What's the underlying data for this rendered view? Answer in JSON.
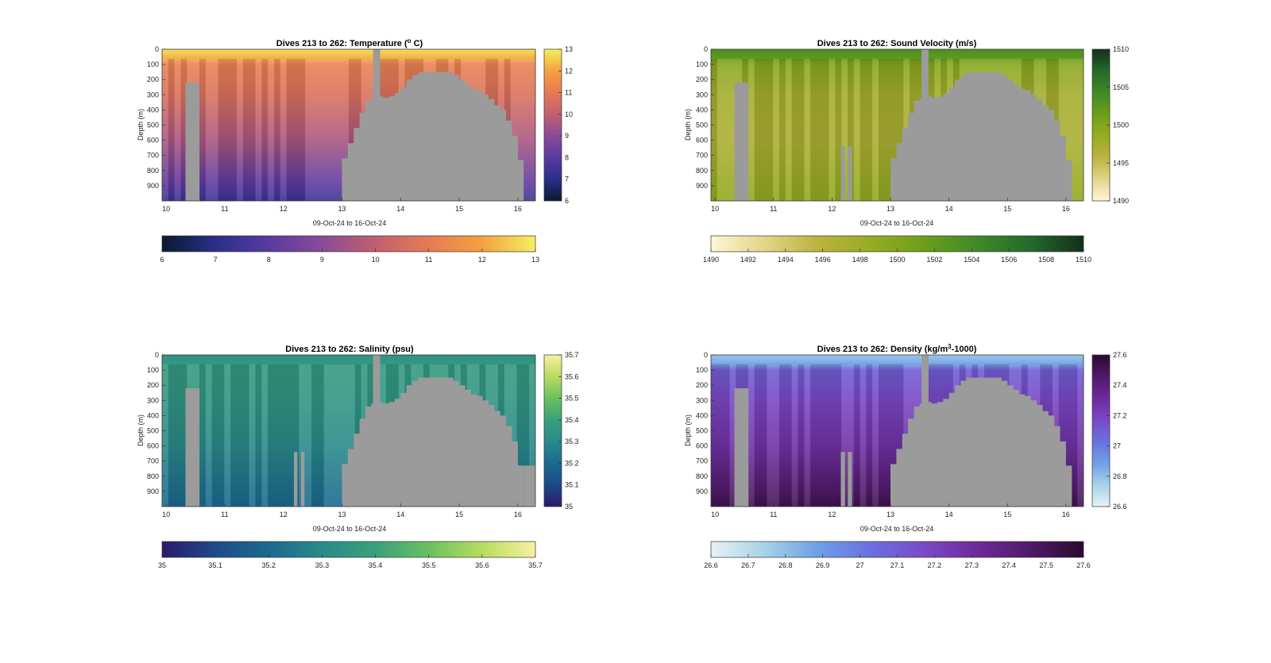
{
  "charts": [
    {
      "id": "temperature",
      "title": "Dives 213 to 262: Temperature (° C)",
      "title_main": "Dives 213 to 262: Temperature (",
      "title_sup": "o",
      "title_end": " C)",
      "ylabel": "Depth (m)",
      "xlabel": "09-Oct-24 to 16-Oct-24",
      "colorbar_ticks": [
        "6",
        "7",
        "8",
        "9",
        "10",
        "11",
        "12",
        "13"
      ],
      "hbar_ticks": [
        "6",
        "7",
        "8",
        "9",
        "10",
        "11",
        "12",
        "13"
      ],
      "colormap": [
        "#0a1a2e",
        "#2a2f8a",
        "#5a3aa0",
        "#8a4a9a",
        "#c06070",
        "#e67a55",
        "#f5a040",
        "#f2f060"
      ]
    },
    {
      "id": "sound-velocity",
      "title": "Dives 213 to 262: Sound Velocity (m/s)",
      "title_main": "Dives 213 to 262: Sound Velocity (m/s)",
      "title_sup": "",
      "title_end": "",
      "ylabel": "Depth (m)",
      "xlabel": "09-Oct-24 to 16-Oct-24",
      "colorbar_ticks": [
        "1490",
        "1495",
        "1500",
        "1505",
        "1510"
      ],
      "hbar_ticks": [
        "1490",
        "1492",
        "1494",
        "1496",
        "1498",
        "1500",
        "1502",
        "1504",
        "1506",
        "1508",
        "1510"
      ],
      "colormap": [
        "#fdf7d4",
        "#e2d58a",
        "#bdb240",
        "#97ac22",
        "#6c9e18",
        "#3f8a28",
        "#226a2c",
        "#14301c"
      ]
    },
    {
      "id": "salinity",
      "title": "Dives 213 to 262: Salinity (psu)",
      "title_main": "Dives 213 to 262: Salinity (psu)",
      "title_sup": "",
      "title_end": "",
      "ylabel": "Depth (m)",
      "xlabel": "09-Oct-24 to 16-Oct-24",
      "colorbar_ticks": [
        "35",
        "35.1",
        "35.2",
        "35.3",
        "35.4",
        "35.5",
        "35.6",
        "35.7"
      ],
      "hbar_ticks": [
        "35",
        "35.1",
        "35.2",
        "35.3",
        "35.4",
        "35.5",
        "35.6",
        "35.7"
      ],
      "colormap": [
        "#2a1a6a",
        "#1e4a8a",
        "#1c6a90",
        "#2a8a8a",
        "#3aa07a",
        "#6ac060",
        "#b8dc60",
        "#f8f0a0"
      ]
    },
    {
      "id": "density",
      "title": "Dives 213 to 262: Density (kg/m³-1000)",
      "title_main": "Dives 213 to 262: Density (kg/m",
      "title_sup": "3",
      "title_end": "-1000)",
      "ylabel": "Depth (m)",
      "xlabel": "09-Oct-24 to 16-Oct-24",
      "colorbar_ticks": [
        "26.6",
        "26.8",
        "27",
        "27.2",
        "27.4",
        "27.6"
      ],
      "hbar_ticks": [
        "26.6",
        "26.7",
        "26.8",
        "26.9",
        "27",
        "27.1",
        "27.2",
        "27.3",
        "27.4",
        "27.5",
        "27.6"
      ],
      "colormap": [
        "#e6f2f4",
        "#a8d2e6",
        "#6ea0e6",
        "#6a70e0",
        "#7a4ac8",
        "#6e2a9a",
        "#501a6a",
        "#2a0a2e"
      ]
    }
  ],
  "chart_data": [
    {
      "type": "heatmap",
      "title": "Dives 213 to 262: Temperature (° C)",
      "xlabel": "09-Oct-24 to 16-Oct-24",
      "ylabel": "Depth (m)",
      "x_ticks": [
        "10",
        "11",
        "12",
        "13",
        "14",
        "15",
        "16"
      ],
      "xlim": [
        9.93,
        16.3
      ],
      "y_ticks": [
        "0",
        "100",
        "200",
        "300",
        "400",
        "500",
        "600",
        "700",
        "800",
        "900"
      ],
      "ylim": [
        0,
        1000
      ],
      "y_reversed": true,
      "clim": [
        6,
        13
      ],
      "colorbar_label": "Temperature (° C)",
      "profile": {
        "depths": [
          0,
          50,
          100,
          300,
          600,
          900,
          1000
        ],
        "values": [
          12.8,
          12.3,
          11.2,
          10.7,
          9.6,
          8.0,
          7.4
        ]
      },
      "masked_columns_x": [
        [
          10.33,
          10.57
        ],
        [
          13.53,
          13.65
        ]
      ],
      "seafloor_profile_x": [
        13.0,
        13.1,
        13.2,
        13.3,
        13.4,
        13.5,
        13.6,
        13.7,
        13.8,
        13.9,
        14.0,
        14.1,
        14.2,
        14.3,
        14.4,
        14.5,
        14.6,
        14.7,
        14.8,
        14.9,
        15.0,
        15.1,
        15.2,
        15.3,
        15.4,
        15.5,
        15.6,
        15.7,
        15.8,
        15.9,
        16.0,
        16.1,
        16.3
      ],
      "seafloor_profile_depth": [
        720,
        620,
        520,
        420,
        340,
        320,
        310,
        320,
        310,
        290,
        250,
        200,
        170,
        150,
        150,
        150,
        150,
        150,
        150,
        170,
        200,
        230,
        260,
        270,
        300,
        330,
        370,
        400,
        470,
        570,
        730,
        1000,
        1000
      ],
      "grid": false,
      "colorbar_placement": "right and bottom"
    },
    {
      "type": "heatmap",
      "title": "Dives 213 to 262: Sound Velocity (m/s)",
      "xlabel": "09-Oct-24 to 16-Oct-24",
      "ylabel": "Depth (m)",
      "x_ticks": [
        "10",
        "11",
        "12",
        "13",
        "14",
        "15",
        "16"
      ],
      "xlim": [
        9.93,
        16.3
      ],
      "y_ticks": [
        "0",
        "100",
        "200",
        "300",
        "400",
        "500",
        "600",
        "700",
        "800",
        "900"
      ],
      "ylim": [
        0,
        1000
      ],
      "y_reversed": true,
      "clim": [
        1490,
        1510
      ],
      "colorbar_label": "Sound Velocity (m/s)",
      "profile": {
        "depths": [
          0,
          50,
          100,
          300,
          600,
          900,
          1000
        ],
        "values": [
          1503.5,
          1502.5,
          1499.5,
          1497.5,
          1497.0,
          1498.5,
          1499.0
        ]
      },
      "masked_columns_x": [
        [
          10.33,
          10.57
        ],
        [
          13.53,
          13.65
        ],
        [
          12.15,
          12.22
        ],
        [
          12.27,
          12.34
        ]
      ],
      "seafloor_profile_x": [
        13.0,
        13.1,
        13.2,
        13.3,
        13.4,
        13.5,
        13.6,
        13.7,
        13.8,
        13.9,
        14.0,
        14.1,
        14.2,
        14.3,
        14.4,
        14.5,
        14.6,
        14.7,
        14.8,
        14.9,
        15.0,
        15.1,
        15.2,
        15.3,
        15.4,
        15.5,
        15.6,
        15.7,
        15.8,
        15.9,
        16.0,
        16.1,
        16.3
      ],
      "seafloor_profile_depth": [
        720,
        620,
        520,
        420,
        340,
        320,
        310,
        320,
        310,
        290,
        250,
        200,
        170,
        150,
        150,
        150,
        150,
        150,
        150,
        170,
        200,
        230,
        260,
        270,
        300,
        330,
        370,
        400,
        470,
        570,
        730,
        1000,
        1000
      ],
      "grid": false,
      "colorbar_placement": "right and bottom"
    },
    {
      "type": "heatmap",
      "title": "Dives 213 to 262: Salinity (psu)",
      "xlabel": "09-Oct-24 to 16-Oct-24",
      "ylabel": "Depth (m)",
      "x_ticks": [
        "10",
        "11",
        "12",
        "13",
        "14",
        "15",
        "16"
      ],
      "xlim": [
        9.93,
        16.3
      ],
      "y_ticks": [
        "0",
        "100",
        "200",
        "300",
        "400",
        "500",
        "600",
        "700",
        "800",
        "900"
      ],
      "ylim": [
        0,
        1000
      ],
      "y_reversed": true,
      "clim": [
        35,
        35.7
      ],
      "colorbar_label": "Salinity (psu)",
      "profile": {
        "depths": [
          0,
          50,
          100,
          300,
          600,
          900,
          1000
        ],
        "values": [
          35.33,
          35.36,
          35.37,
          35.35,
          35.3,
          35.22,
          35.2
        ]
      },
      "masked_columns_x": [
        [
          10.33,
          10.57
        ],
        [
          13.53,
          13.65
        ],
        [
          12.18,
          12.24
        ],
        [
          12.3,
          12.36
        ],
        [
          16.1,
          16.3
        ]
      ],
      "seafloor_profile_x": [
        13.0,
        13.1,
        13.2,
        13.3,
        13.4,
        13.5,
        13.6,
        13.7,
        13.8,
        13.9,
        14.0,
        14.1,
        14.2,
        14.3,
        14.4,
        14.5,
        14.6,
        14.7,
        14.8,
        14.9,
        15.0,
        15.1,
        15.2,
        15.3,
        15.4,
        15.5,
        15.6,
        15.7,
        15.8,
        15.9,
        16.0,
        16.1,
        16.3
      ],
      "seafloor_profile_depth": [
        720,
        620,
        520,
        420,
        340,
        320,
        310,
        320,
        310,
        290,
        250,
        200,
        170,
        150,
        150,
        150,
        150,
        150,
        150,
        170,
        200,
        230,
        260,
        270,
        300,
        330,
        370,
        400,
        470,
        570,
        730,
        1000,
        1000
      ],
      "grid": false,
      "colorbar_placement": "right and bottom"
    },
    {
      "type": "heatmap",
      "title": "Dives 213 to 262: Density (kg/m³-1000)",
      "xlabel": "09-Oct-24 to 16-Oct-24",
      "ylabel": "Depth (m)",
      "x_ticks": [
        "10",
        "11",
        "12",
        "13",
        "14",
        "15",
        "16"
      ],
      "xlim": [
        9.93,
        16.3
      ],
      "y_ticks": [
        "0",
        "100",
        "200",
        "300",
        "400",
        "500",
        "600",
        "700",
        "800",
        "900"
      ],
      "ylim": [
        0,
        1000
      ],
      "y_reversed": true,
      "clim": [
        26.6,
        27.6
      ],
      "colorbar_label": "Density (kg/m³-1000)",
      "profile": {
        "depths": [
          0,
          50,
          100,
          300,
          600,
          900,
          1000
        ],
        "values": [
          26.78,
          26.85,
          27.1,
          27.18,
          27.28,
          27.45,
          27.52
        ]
      },
      "masked_columns_x": [
        [
          10.33,
          10.57
        ],
        [
          13.53,
          13.65
        ],
        [
          12.15,
          12.22
        ],
        [
          12.27,
          12.34
        ]
      ],
      "seafloor_profile_x": [
        13.0,
        13.1,
        13.2,
        13.3,
        13.4,
        13.5,
        13.6,
        13.7,
        13.8,
        13.9,
        14.0,
        14.1,
        14.2,
        14.3,
        14.4,
        14.5,
        14.6,
        14.7,
        14.8,
        14.9,
        15.0,
        15.1,
        15.2,
        15.3,
        15.4,
        15.5,
        15.6,
        15.7,
        15.8,
        15.9,
        16.0,
        16.1,
        16.3
      ],
      "seafloor_profile_depth": [
        720,
        620,
        520,
        420,
        340,
        320,
        310,
        320,
        310,
        290,
        250,
        200,
        170,
        150,
        150,
        150,
        150,
        150,
        150,
        170,
        200,
        230,
        260,
        270,
        300,
        330,
        370,
        400,
        470,
        570,
        730,
        1000,
        1000
      ],
      "grid": false,
      "colorbar_placement": "right and bottom"
    }
  ]
}
